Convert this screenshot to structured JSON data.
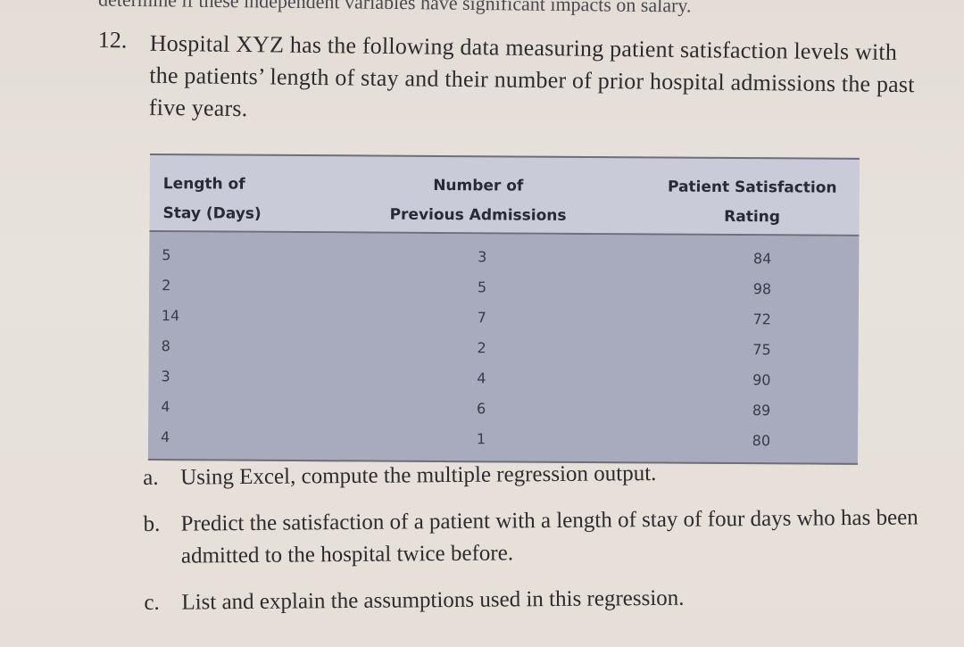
{
  "previous_fragment": "determine if these independent variables have significant impacts on salary.",
  "problem": {
    "number": "12.",
    "text": "Hospital XYZ has the following data measuring patient satisfaction levels with the patients’ length of stay and their number of prior hospital admissions the past five years."
  },
  "table": {
    "headers": [
      {
        "line1": "Length of",
        "line2": "Stay (Days)"
      },
      {
        "line1": "Number of",
        "line2": "Previous Admissions"
      },
      {
        "line1": "Patient Satisfaction",
        "line2": "Rating"
      }
    ],
    "rows": [
      [
        "5",
        "3",
        "84"
      ],
      [
        "2",
        "5",
        "98"
      ],
      [
        "14",
        "7",
        "72"
      ],
      [
        "8",
        "2",
        "75"
      ],
      [
        "3",
        "4",
        "90"
      ],
      [
        "4",
        "6",
        "89"
      ],
      [
        "4",
        "1",
        "80"
      ]
    ]
  },
  "questions": [
    {
      "letter": "a.",
      "text": "Using Excel, compute the multiple regression output."
    },
    {
      "letter": "b.",
      "text": "Predict the satisfaction of a patient with a length of stay of four days who has been admitted to the hospital twice before."
    },
    {
      "letter": "c.",
      "text": "List and explain the assumptions used in this regression."
    }
  ]
}
